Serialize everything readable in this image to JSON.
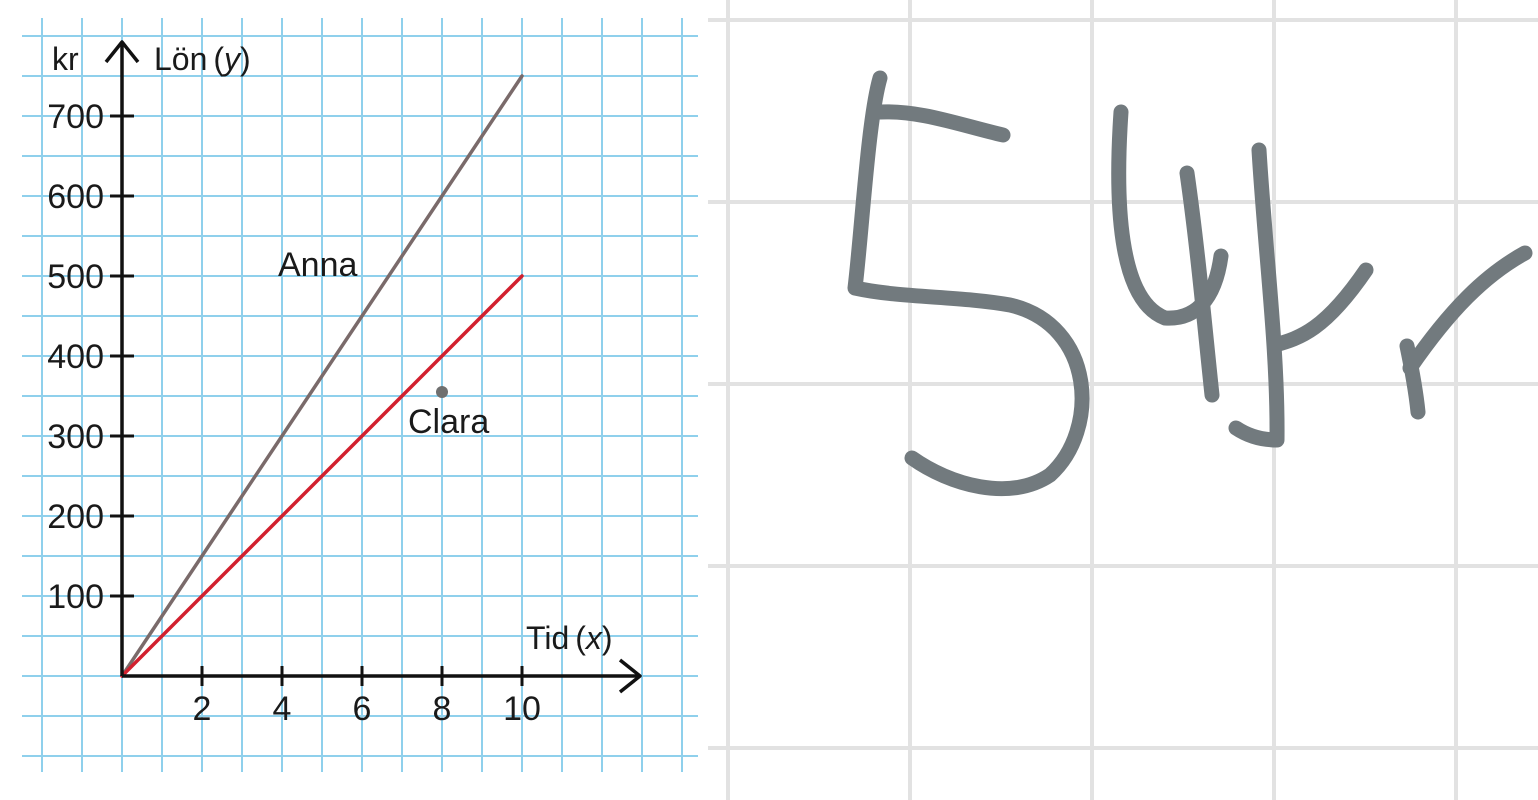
{
  "colors": {
    "page_grid": "#e2e2e2",
    "chart_grid": "#8fd0ec",
    "axis": "#111111",
    "ink": "#727a7e"
  },
  "chart_data": {
    "type": "line",
    "currency_label": "kr",
    "ylabel": "Lön",
    "ylabel_var": "y",
    "xlabel": "Tid",
    "xlabel_var": "x",
    "xlim": [
      0,
      13
    ],
    "ylim": [
      0,
      750
    ],
    "x_ticks": [
      2,
      4,
      6,
      8,
      10
    ],
    "y_ticks": [
      100,
      200,
      300,
      400,
      500,
      600,
      700
    ],
    "grid": true,
    "series": [
      {
        "name": "Anna",
        "color": "#7a6a6a",
        "x": [
          0,
          10
        ],
        "y": [
          0,
          750
        ]
      },
      {
        "name": "Clara",
        "color": "#d2202e",
        "x": [
          0,
          10
        ],
        "y": [
          0,
          500
        ]
      }
    ],
    "points": [
      {
        "x": 8,
        "y": 355
      }
    ]
  },
  "handwriting": {
    "text": "54kr",
    "icon": "handwritten-answer-icon"
  }
}
